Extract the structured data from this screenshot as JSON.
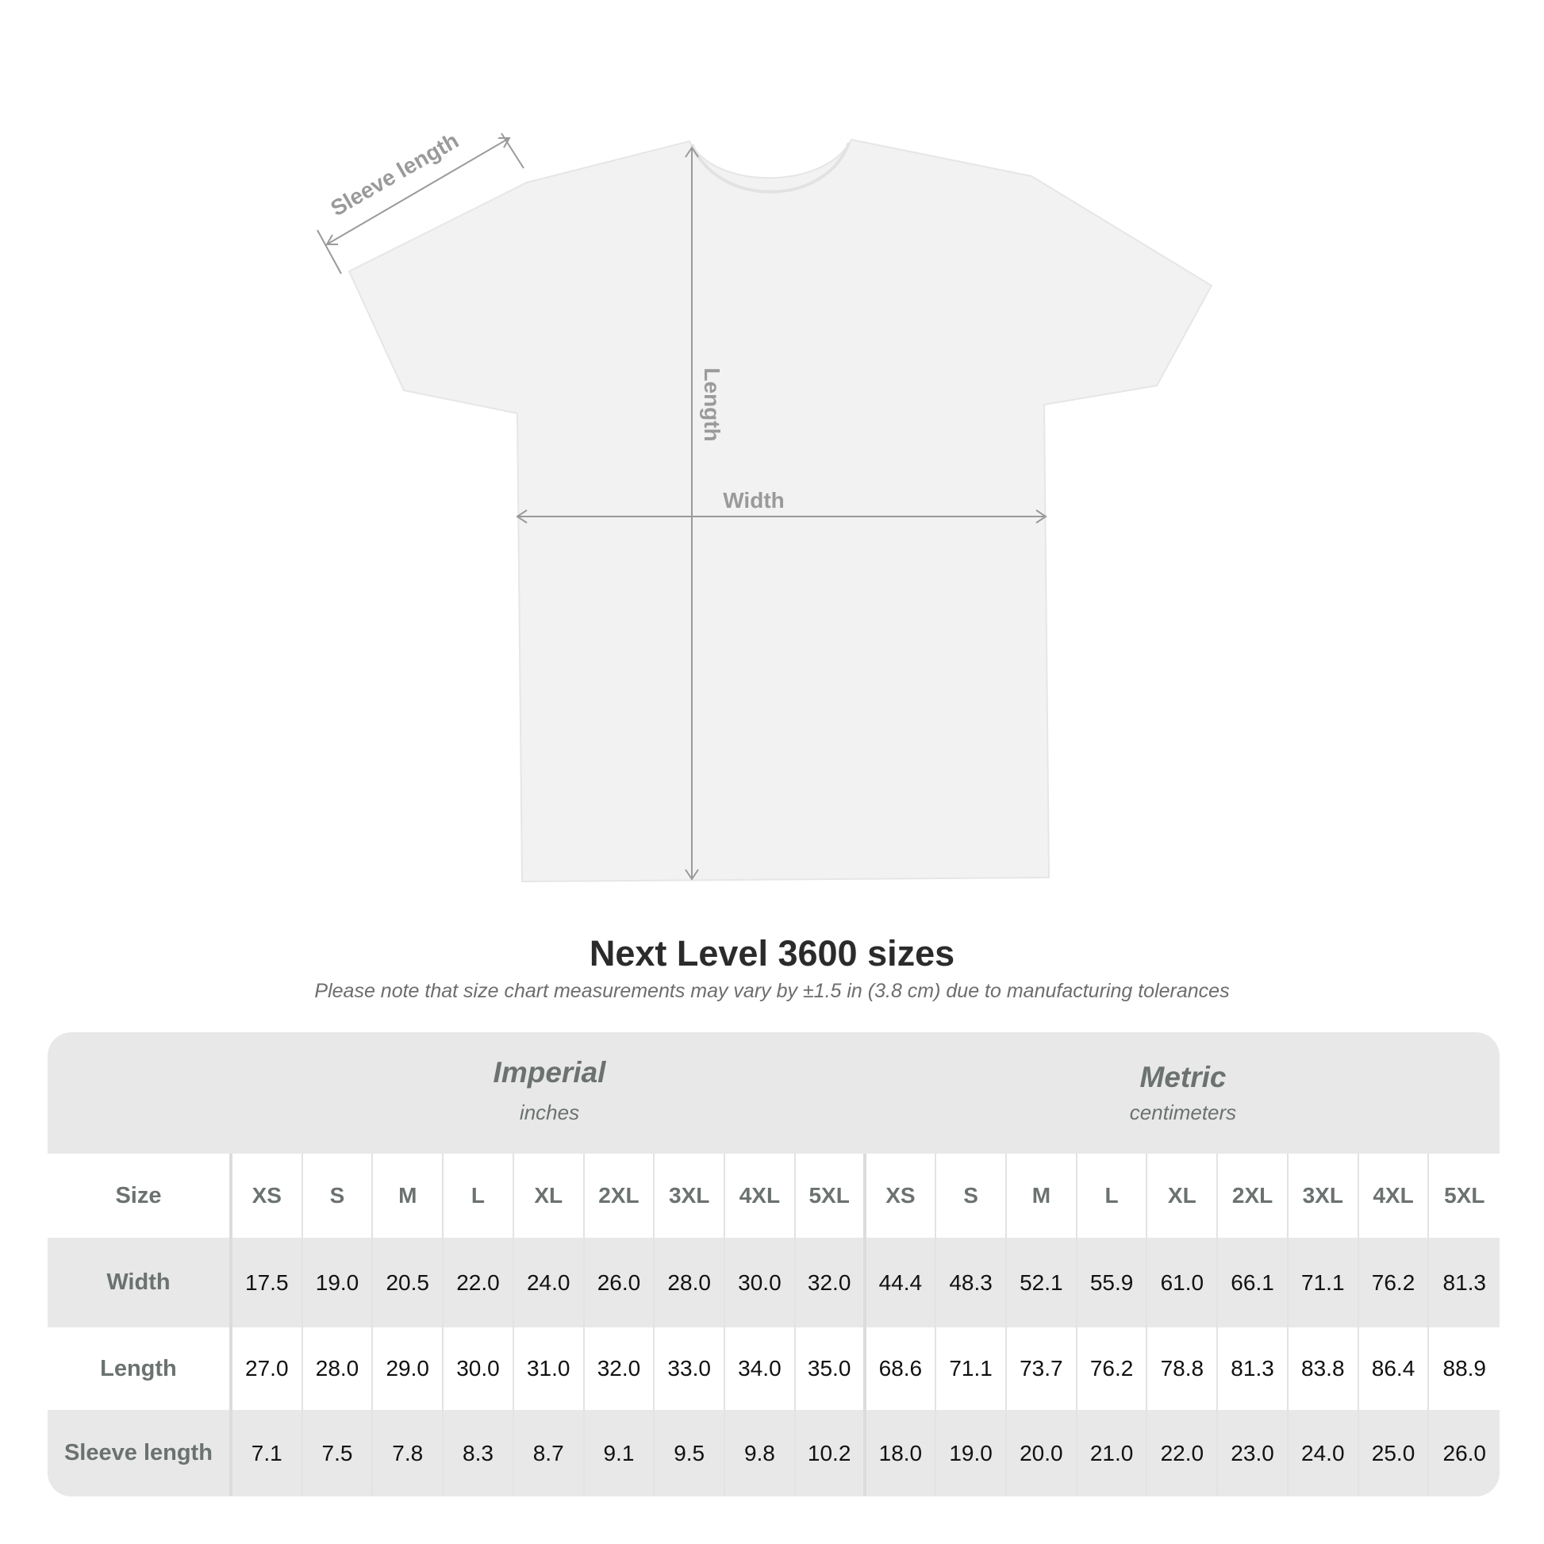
{
  "diagram": {
    "labels": {
      "sleeve": "Sleeve length",
      "length": "Length",
      "width": "Width"
    },
    "colors": {
      "shirt": "#f2f2f2",
      "annotation": "#9a9a9a"
    }
  },
  "title": "Next Level 3600 sizes",
  "subtitle": "Please note that size chart measurements may vary by ±1.5 in (3.8 cm) due to manufacturing tolerances",
  "table": {
    "imperial": {
      "title": "Imperial",
      "unit": "inches"
    },
    "metric": {
      "title": "Metric",
      "unit": "centimeters"
    },
    "size_label": "Size",
    "sizes": [
      "XS",
      "S",
      "M",
      "L",
      "XL",
      "2XL",
      "3XL",
      "4XL",
      "5XL"
    ],
    "rows": [
      {
        "label": "Width",
        "imperial": [
          "17.5",
          "19.0",
          "20.5",
          "22.0",
          "24.0",
          "26.0",
          "28.0",
          "30.0",
          "32.0"
        ],
        "metric": [
          "44.4",
          "48.3",
          "52.1",
          "55.9",
          "61.0",
          "66.1",
          "71.1",
          "76.2",
          "81.3"
        ]
      },
      {
        "label": "Length",
        "imperial": [
          "27.0",
          "28.0",
          "29.0",
          "30.0",
          "31.0",
          "32.0",
          "33.0",
          "34.0",
          "35.0"
        ],
        "metric": [
          "68.6",
          "71.1",
          "73.7",
          "76.2",
          "78.8",
          "81.3",
          "83.8",
          "86.4",
          "88.9"
        ]
      },
      {
        "label": "Sleeve length",
        "imperial": [
          "7.1",
          "7.5",
          "7.8",
          "8.3",
          "8.7",
          "9.1",
          "9.5",
          "9.8",
          "10.2"
        ],
        "metric": [
          "18.0",
          "19.0",
          "20.0",
          "21.0",
          "22.0",
          "23.0",
          "24.0",
          "25.0",
          "26.0"
        ]
      }
    ]
  }
}
